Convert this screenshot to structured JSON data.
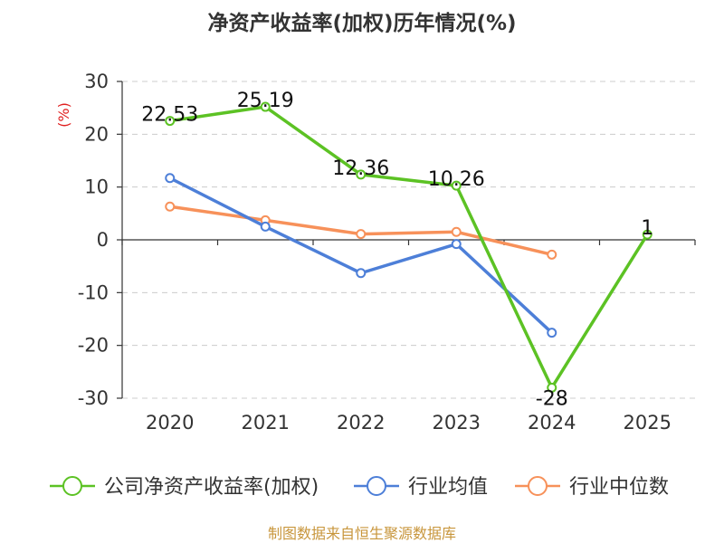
{
  "chart_data": {
    "type": "line",
    "title": "净资产收益率(加权)历年情况(%)",
    "ylabel": "(%)",
    "xlabel": "",
    "categories": [
      "2020",
      "2021",
      "2022",
      "2023",
      "2024",
      "2025"
    ],
    "ylim": [
      -30,
      30
    ],
    "yticks": [
      30,
      20,
      10,
      0,
      -10,
      -20,
      -30
    ],
    "grid": true,
    "legend_position": "bottom",
    "series": [
      {
        "name": "公司净资产收益率(加权)",
        "color": "#5cc224",
        "values": [
          22.53,
          25.19,
          12.36,
          10.26,
          -28,
          1
        ],
        "labels": [
          "22.53",
          "25.19",
          "12.36",
          "10.26",
          "-28",
          "1"
        ]
      },
      {
        "name": "行业均值",
        "color": "#4d7fd8",
        "values": [
          11.7,
          2.5,
          -6.3,
          -0.8,
          -17.6,
          null
        ]
      },
      {
        "name": "行业中位数",
        "color": "#f7915a",
        "values": [
          6.3,
          3.7,
          1.1,
          1.5,
          -2.8,
          null
        ]
      }
    ]
  },
  "footer": {
    "source": "制图数据来自恒生聚源数据库"
  }
}
